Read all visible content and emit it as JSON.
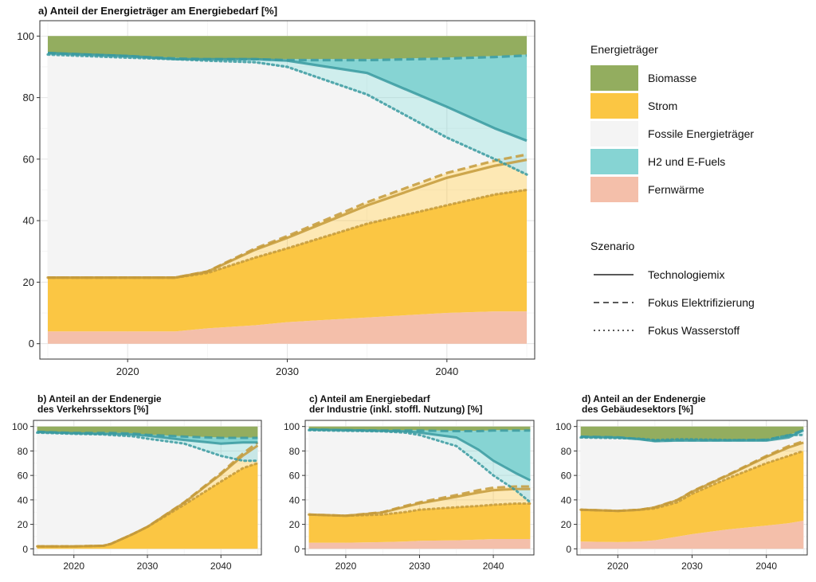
{
  "colors": {
    "biomasse": "#93ad5f",
    "strom": "#fbc643",
    "fossile": "#f4f4f4",
    "h2": "#86d4d3",
    "fernwaerme": "#f4bfaa",
    "line_strom": "#c49a3a",
    "line_h2": "#3a9aa0"
  },
  "legend": {
    "energy_title": "Energieträger",
    "energy_items": [
      {
        "label": "Biomasse",
        "color_key": "biomasse"
      },
      {
        "label": "Strom",
        "color_key": "strom"
      },
      {
        "label": "Fossile Energieträger",
        "color_key": "fossile"
      },
      {
        "label": "H2 und E-Fuels",
        "color_key": "h2"
      },
      {
        "label": "Fernwärme",
        "color_key": "fernwaerme"
      }
    ],
    "scenario_title": "Szenario",
    "scenario_items": [
      {
        "label": "Technologiemix",
        "dash": "solid"
      },
      {
        "label": "Fokus Elektrifizierung",
        "dash": "dashed"
      },
      {
        "label": "Fokus Wasserstoff",
        "dash": "dotted"
      }
    ]
  },
  "chart_data": [
    {
      "id": "a",
      "type": "area",
      "title_lines": [
        "a) Anteil der Energieträger am Energiebedarf [%]"
      ],
      "xlim": [
        2014.5,
        2045.5
      ],
      "ylim": [
        -5,
        105
      ],
      "x_ticks": [
        2020,
        2030,
        2040
      ],
      "y_ticks": [
        0,
        20,
        40,
        60,
        80,
        100
      ],
      "grid": true,
      "x": [
        2015,
        2020,
        2023,
        2025,
        2028,
        2030,
        2035,
        2040,
        2043,
        2045
      ],
      "series": {
        "fernwaerme": [
          4,
          4,
          4,
          5,
          6,
          7,
          8.5,
          10,
          10.5,
          10.5
        ],
        "strom_low": [
          21.5,
          21.5,
          21.5,
          23,
          28,
          31,
          39,
          45,
          48.5,
          50
        ],
        "strom_high": [
          21.5,
          21.5,
          21.5,
          23.5,
          31,
          35,
          46,
          55.5,
          59.5,
          61.5
        ],
        "h2_low_wasserstoff": [
          94,
          93,
          92.5,
          92,
          91.5,
          90,
          81,
          67,
          60,
          55
        ],
        "h2_low_mix": [
          94.5,
          93.5,
          92.5,
          92.5,
          92.5,
          92,
          88,
          77,
          70,
          66
        ],
        "biomasse_low": [
          94.5,
          93.5,
          93,
          92.5,
          92.5,
          92.5,
          92.5,
          93,
          93.5,
          94
        ],
        "top": [
          100,
          100,
          100,
          100,
          100,
          100,
          100,
          100,
          100,
          100
        ]
      }
    },
    {
      "id": "b",
      "type": "area",
      "title_lines": [
        "b) Anteil an der Endenergie",
        "des Verkehrssektors [%]"
      ],
      "xlim": [
        2014.5,
        2045.5
      ],
      "ylim": [
        -5,
        105
      ],
      "x_ticks": [
        2020,
        2030,
        2040
      ],
      "y_ticks": [
        0,
        20,
        40,
        60,
        80,
        100
      ],
      "grid": true,
      "x": [
        2015,
        2020,
        2024,
        2025,
        2028,
        2030,
        2035,
        2040,
        2043,
        2045
      ],
      "series": {
        "fernwaerme": [
          0,
          0,
          0,
          0,
          0,
          0,
          0,
          0,
          0,
          0
        ],
        "strom_low": [
          2,
          2,
          2.5,
          4,
          12,
          18,
          36,
          55,
          66,
          70
        ],
        "strom_high": [
          2,
          2,
          2.5,
          4,
          12,
          18,
          38,
          62,
          78,
          87
        ],
        "h2_low_wasserstoff": [
          95,
          94,
          93.5,
          93,
          92,
          90,
          86,
          76,
          72,
          72
        ],
        "h2_low_mix": [
          95.5,
          94.5,
          94,
          94,
          93.5,
          92.5,
          89,
          86,
          87,
          87
        ],
        "biomasse_low": [
          96,
          95,
          95,
          95,
          94.5,
          93.5,
          92,
          91,
          91,
          91
        ],
        "top": [
          100,
          100,
          100,
          100,
          100,
          100,
          100,
          100,
          100,
          100
        ]
      }
    },
    {
      "id": "c",
      "type": "area",
      "title_lines": [
        "c) Anteil am Energiebedarf",
        "der Industrie (inkl. stoffl. Nutzung) [%]"
      ],
      "xlim": [
        2014.5,
        2045.5
      ],
      "ylim": [
        -5,
        105
      ],
      "x_ticks": [
        2020,
        2030,
        2040
      ],
      "y_ticks": [
        0,
        20,
        40,
        60,
        80,
        100
      ],
      "grid": true,
      "x": [
        2015,
        2020,
        2025,
        2028,
        2030,
        2035,
        2038,
        2040,
        2043,
        2045
      ],
      "series": {
        "fernwaerme": [
          5,
          5,
          5.5,
          6,
          6.5,
          7,
          7.5,
          8,
          8,
          8
        ],
        "strom_low": [
          28,
          27,
          28,
          30,
          32,
          34,
          35,
          36,
          37,
          37
        ],
        "strom_high": [
          28,
          27,
          30,
          35,
          38,
          44,
          48,
          50,
          51,
          51
        ],
        "h2_low_wasserstoff": [
          97,
          96.5,
          96,
          95,
          93,
          84,
          70,
          60,
          48,
          38
        ],
        "h2_low_mix": [
          97.5,
          97,
          96.5,
          96,
          95,
          91,
          81,
          72,
          62,
          56
        ],
        "biomasse_low": [
          97.5,
          97,
          97,
          97,
          97,
          96.5,
          96.5,
          97,
          97,
          97
        ],
        "top": [
          100,
          100,
          100,
          100,
          100,
          100,
          100,
          100,
          100,
          100
        ]
      }
    },
    {
      "id": "d",
      "type": "area",
      "title_lines": [
        "d) Anteil an der Endenergie",
        "des Gebäudesektors [%]"
      ],
      "xlim": [
        2014.5,
        2045.5
      ],
      "ylim": [
        -5,
        105
      ],
      "x_ticks": [
        2020,
        2030,
        2040
      ],
      "y_ticks": [
        0,
        20,
        40,
        60,
        80,
        100
      ],
      "grid": true,
      "x": [
        2015,
        2020,
        2023,
        2025,
        2028,
        2030,
        2035,
        2040,
        2043,
        2045
      ],
      "series": {
        "fernwaerme": [
          6,
          5.5,
          6,
          7,
          10,
          12,
          16,
          19,
          21,
          23
        ],
        "strom_low": [
          32,
          31,
          32,
          33,
          38,
          45,
          58,
          70,
          76,
          80
        ],
        "strom_high": [
          32,
          31,
          32,
          34,
          40,
          47,
          61,
          76,
          84,
          88
        ],
        "h2_low_wasserstoff": [
          91,
          90.5,
          90,
          89,
          89.5,
          89.5,
          89,
          89,
          93,
          93
        ],
        "h2_low_mix": [
          91.5,
          91,
          89.5,
          88,
          88.5,
          88.5,
          88.5,
          88.5,
          91,
          97
        ],
        "biomasse_low": [
          92,
          91.5,
          90,
          88.5,
          89,
          89,
          89,
          89.5,
          93,
          97
        ],
        "top": [
          100,
          100,
          100,
          100,
          100,
          100,
          100,
          100,
          100,
          100
        ]
      }
    }
  ]
}
